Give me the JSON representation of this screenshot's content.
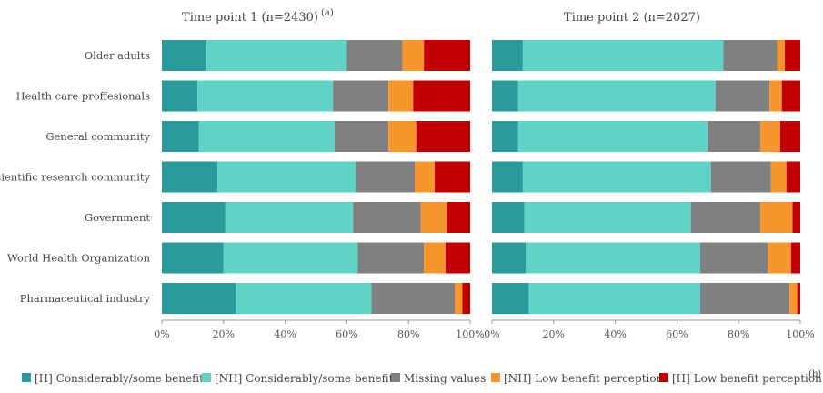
{
  "chart_data": [
    {
      "type": "bar",
      "orientation": "horizontal",
      "stacked": true,
      "title": "Time point 1 (n=2430)",
      "title_note": "(a)",
      "categories": [
        "Older adults",
        "Health care proffesionals",
        "General community",
        "Scientific research community",
        "Government",
        "World Health Organization",
        "Pharmaceutical industry"
      ],
      "series": [
        {
          "name": "[H] Considerably/some benefit",
          "values": [
            14.5,
            11.5,
            12.0,
            18.0,
            20.5,
            20.0,
            24.0
          ]
        },
        {
          "name": "[NH] Considerably/some benefit",
          "values": [
            45.5,
            44.0,
            44.0,
            45.0,
            41.5,
            43.5,
            44.0
          ]
        },
        {
          "name": "Missing values",
          "values": [
            18.0,
            18.0,
            17.5,
            19.0,
            22.0,
            21.5,
            27.0
          ]
        },
        {
          "name": "[NH] Low benefit perception",
          "values": [
            7.0,
            8.0,
            9.0,
            6.5,
            8.5,
            7.0,
            2.5
          ]
        },
        {
          "name": "[H] Low benefit perception",
          "values": [
            15.0,
            18.5,
            17.5,
            11.5,
            7.5,
            8.0,
            2.5
          ]
        }
      ],
      "x_ticks": [
        "0%",
        "20%",
        "40%",
        "60%",
        "80%",
        "100%"
      ],
      "xlim": [
        0,
        100
      ]
    },
    {
      "type": "bar",
      "orientation": "horizontal",
      "stacked": true,
      "title": "Time point 2 (n=2027)",
      "categories": [
        "Older adults",
        "Health care proffesionals",
        "General community",
        "Scientific research community",
        "Government",
        "World Health Organization",
        "Pharmaceutical industry"
      ],
      "series": [
        {
          "name": "[H] Considerably/some benefit",
          "values": [
            10.0,
            8.5,
            8.5,
            10.0,
            10.5,
            11.0,
            12.0
          ]
        },
        {
          "name": "[NH] Considerably/some benefit",
          "values": [
            65.0,
            64.0,
            61.5,
            61.0,
            54.0,
            56.5,
            55.5
          ]
        },
        {
          "name": "Missing values",
          "values": [
            17.5,
            17.5,
            17.0,
            19.5,
            22.5,
            22.0,
            29.0
          ]
        },
        {
          "name": "[NH] Low benefit perception",
          "values": [
            2.5,
            4.0,
            6.5,
            5.0,
            10.5,
            7.5,
            2.5
          ]
        },
        {
          "name": "[H] Low benefit perception",
          "values": [
            5.0,
            6.0,
            6.5,
            4.5,
            2.5,
            3.0,
            1.0
          ]
        }
      ],
      "x_ticks": [
        "0%",
        "20%",
        "40%",
        "60%",
        "80%",
        "100%"
      ],
      "xlim": [
        0,
        100
      ]
    }
  ],
  "legend": {
    "items": [
      {
        "label": "[H] Considerably/some benefit",
        "color": "#2a9a9c"
      },
      {
        "label": "[NH] Considerably/some benefit",
        "color": "#5fd3c6"
      },
      {
        "label": "Missing values",
        "color": "#808080"
      },
      {
        "label": "[NH] Low benefit perception",
        "color": "#f7962d"
      },
      {
        "label": "[H] Low benefit perception",
        "color": "#c00000"
      }
    ],
    "note": "(b)"
  }
}
